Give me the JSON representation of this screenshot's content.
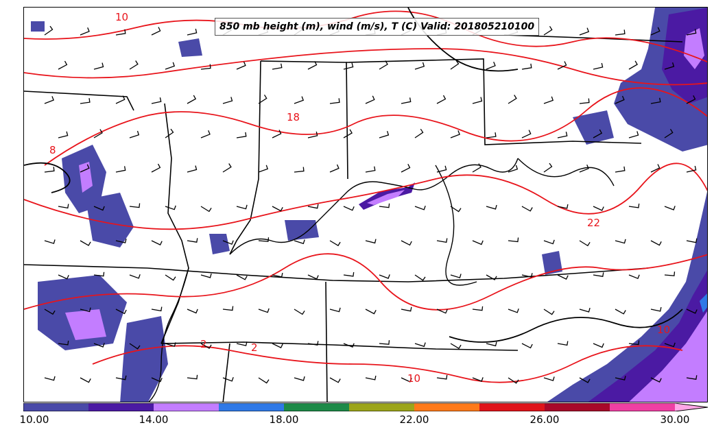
{
  "title": "850 mb height (m), wind (m/s), T (C) Valid: 201805210100",
  "contour_labels": [
    {
      "id": "c10-top",
      "text": "10"
    },
    {
      "id": "c18",
      "text": "18"
    },
    {
      "id": "c8",
      "text": "8"
    },
    {
      "id": "c22",
      "text": "22"
    },
    {
      "id": "c2a",
      "text": "2"
    },
    {
      "id": "c2b",
      "text": "2"
    },
    {
      "id": "c10-bot",
      "text": "10"
    },
    {
      "id": "c10-se",
      "text": "10"
    }
  ],
  "colorbar": {
    "ticks": [
      "10.00",
      "14.00",
      "18.00",
      "22.00",
      "26.00",
      "30.00"
    ],
    "colors": [
      "#4a4aa8",
      "#4b1aa3",
      "#c37dff",
      "#2f79e6",
      "#1d8a48",
      "#9ca51a",
      "#ff7a1a",
      "#e0141a",
      "#a8082a",
      "#ef3fa3",
      "#ffa6e6"
    ]
  },
  "colors": {
    "temperature_contour": "#e8141b",
    "height_contour": "#000000",
    "shade_low": "#4a4aa8",
    "shade_mid": "#4b1aa3",
    "shade_high": "#c37dff"
  }
}
